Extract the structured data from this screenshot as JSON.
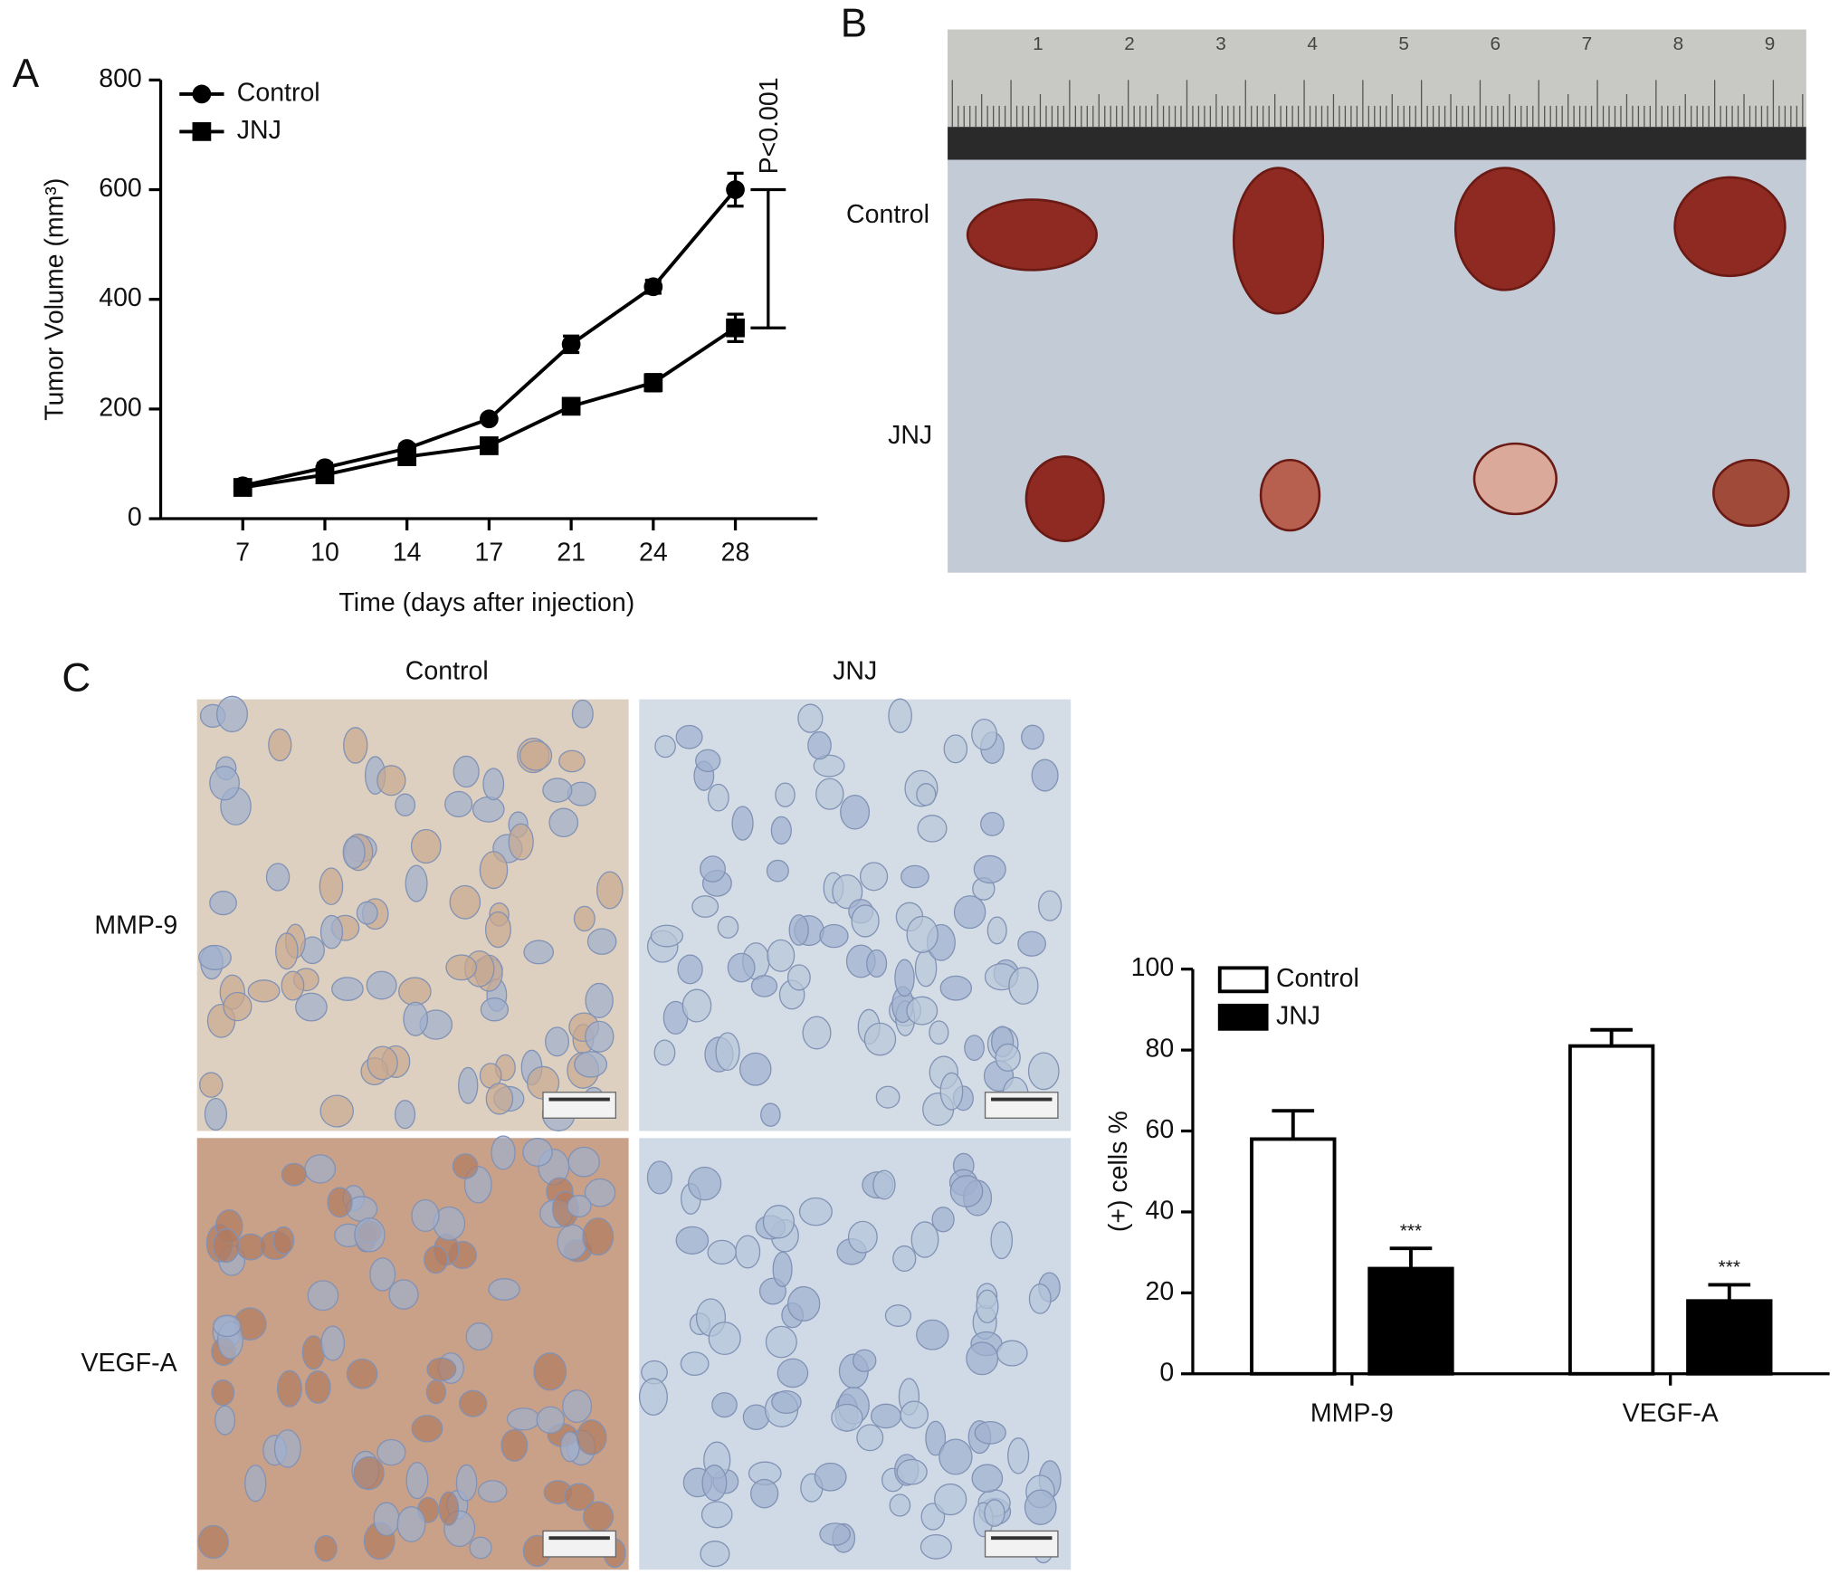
{
  "panel_labels": [
    "A",
    "B",
    "C"
  ],
  "chart_data": [
    {
      "type": "line",
      "xlabel": "Time (days after injection)",
      "ylabel": "Tumor Volume (mm³)",
      "categories": [
        "7",
        "10",
        "14",
        "17",
        "21",
        "24",
        "28"
      ],
      "series": [
        {
          "name": "Control",
          "color": "#000000",
          "marker": "circle",
          "values": [
            60,
            93,
            128,
            182,
            318,
            423,
            600
          ],
          "errors": [
            8,
            8,
            8,
            6,
            15,
            12,
            30
          ]
        },
        {
          "name": "JNJ",
          "color": "#000000",
          "marker": "square",
          "values": [
            57,
            80,
            113,
            133,
            205,
            248,
            348
          ],
          "errors": [
            5,
            8,
            8,
            6,
            8,
            15,
            25
          ]
        }
      ],
      "ylim": [
        0,
        800
      ],
      "yticks": [
        0,
        200,
        400,
        600,
        800
      ],
      "annotation": "P<0.001"
    },
    {
      "type": "bar",
      "ylabel": "(+) cells %",
      "categories": [
        "MMP-9",
        "VEGF-A"
      ],
      "series": [
        {
          "name": "Control",
          "color": "#ffffff",
          "values": [
            58,
            81
          ],
          "errors": [
            7,
            4
          ]
        },
        {
          "name": "JNJ",
          "color": "#000000",
          "values": [
            26,
            18
          ],
          "errors": [
            5,
            4
          ],
          "annotations": [
            "***",
            "***"
          ]
        }
      ],
      "ylim": [
        0,
        100
      ],
      "yticks": [
        0,
        20,
        40,
        60,
        80,
        100
      ]
    }
  ],
  "photo": {
    "row_labels": [
      "Control",
      "JNJ"
    ],
    "ruler_labels": [
      "1",
      "2",
      "3",
      "4",
      "5",
      "6",
      "7",
      "8",
      "9"
    ]
  },
  "micrographs": {
    "column_labels": [
      "Control",
      "JNJ"
    ],
    "row_labels": [
      "MMP-9",
      "VEGF-A"
    ]
  }
}
